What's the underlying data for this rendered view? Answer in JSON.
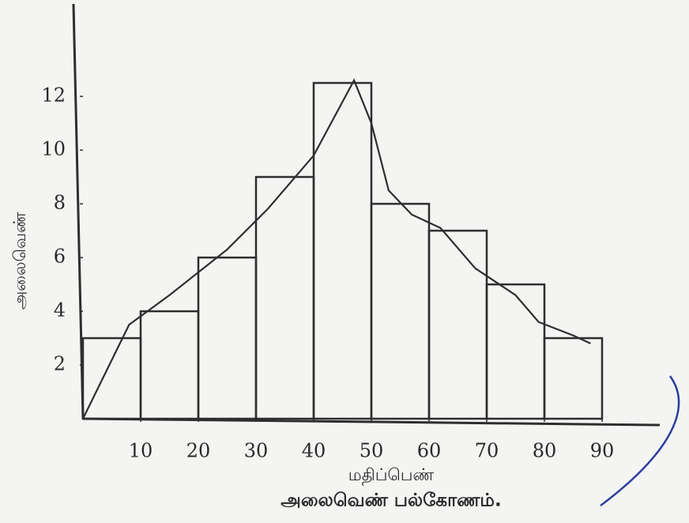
{
  "chart_data": {
    "type": "histogram",
    "title": "அலைவெண் பல்கோணம்.",
    "x_label": "மதிப்பெண்",
    "y_label": "அலைவெண்",
    "bins": [
      0,
      10,
      20,
      30,
      40,
      50,
      60,
      70,
      80,
      90
    ],
    "values": [
      3,
      4,
      6,
      9,
      12.5,
      8,
      7,
      5,
      3
    ],
    "curve": {
      "x": [
        0,
        8,
        15,
        25,
        32,
        40,
        47,
        50,
        53,
        57,
        62,
        68,
        75,
        79,
        85,
        88
      ],
      "values": [
        0,
        3.5,
        4.6,
        6.3,
        7.8,
        9.8,
        12.6,
        11,
        8.5,
        7.6,
        7.1,
        5.6,
        4.6,
        3.6,
        3.1,
        2.8
      ]
    },
    "color": "#2e2e2e",
    "xlim": [
      0,
      100
    ],
    "ylim": [
      0,
      15
    ],
    "xticks": [
      10,
      20,
      30,
      40,
      50,
      60,
      70,
      80,
      90
    ],
    "yticks": [
      2,
      4,
      6,
      8,
      10,
      12
    ]
  }
}
